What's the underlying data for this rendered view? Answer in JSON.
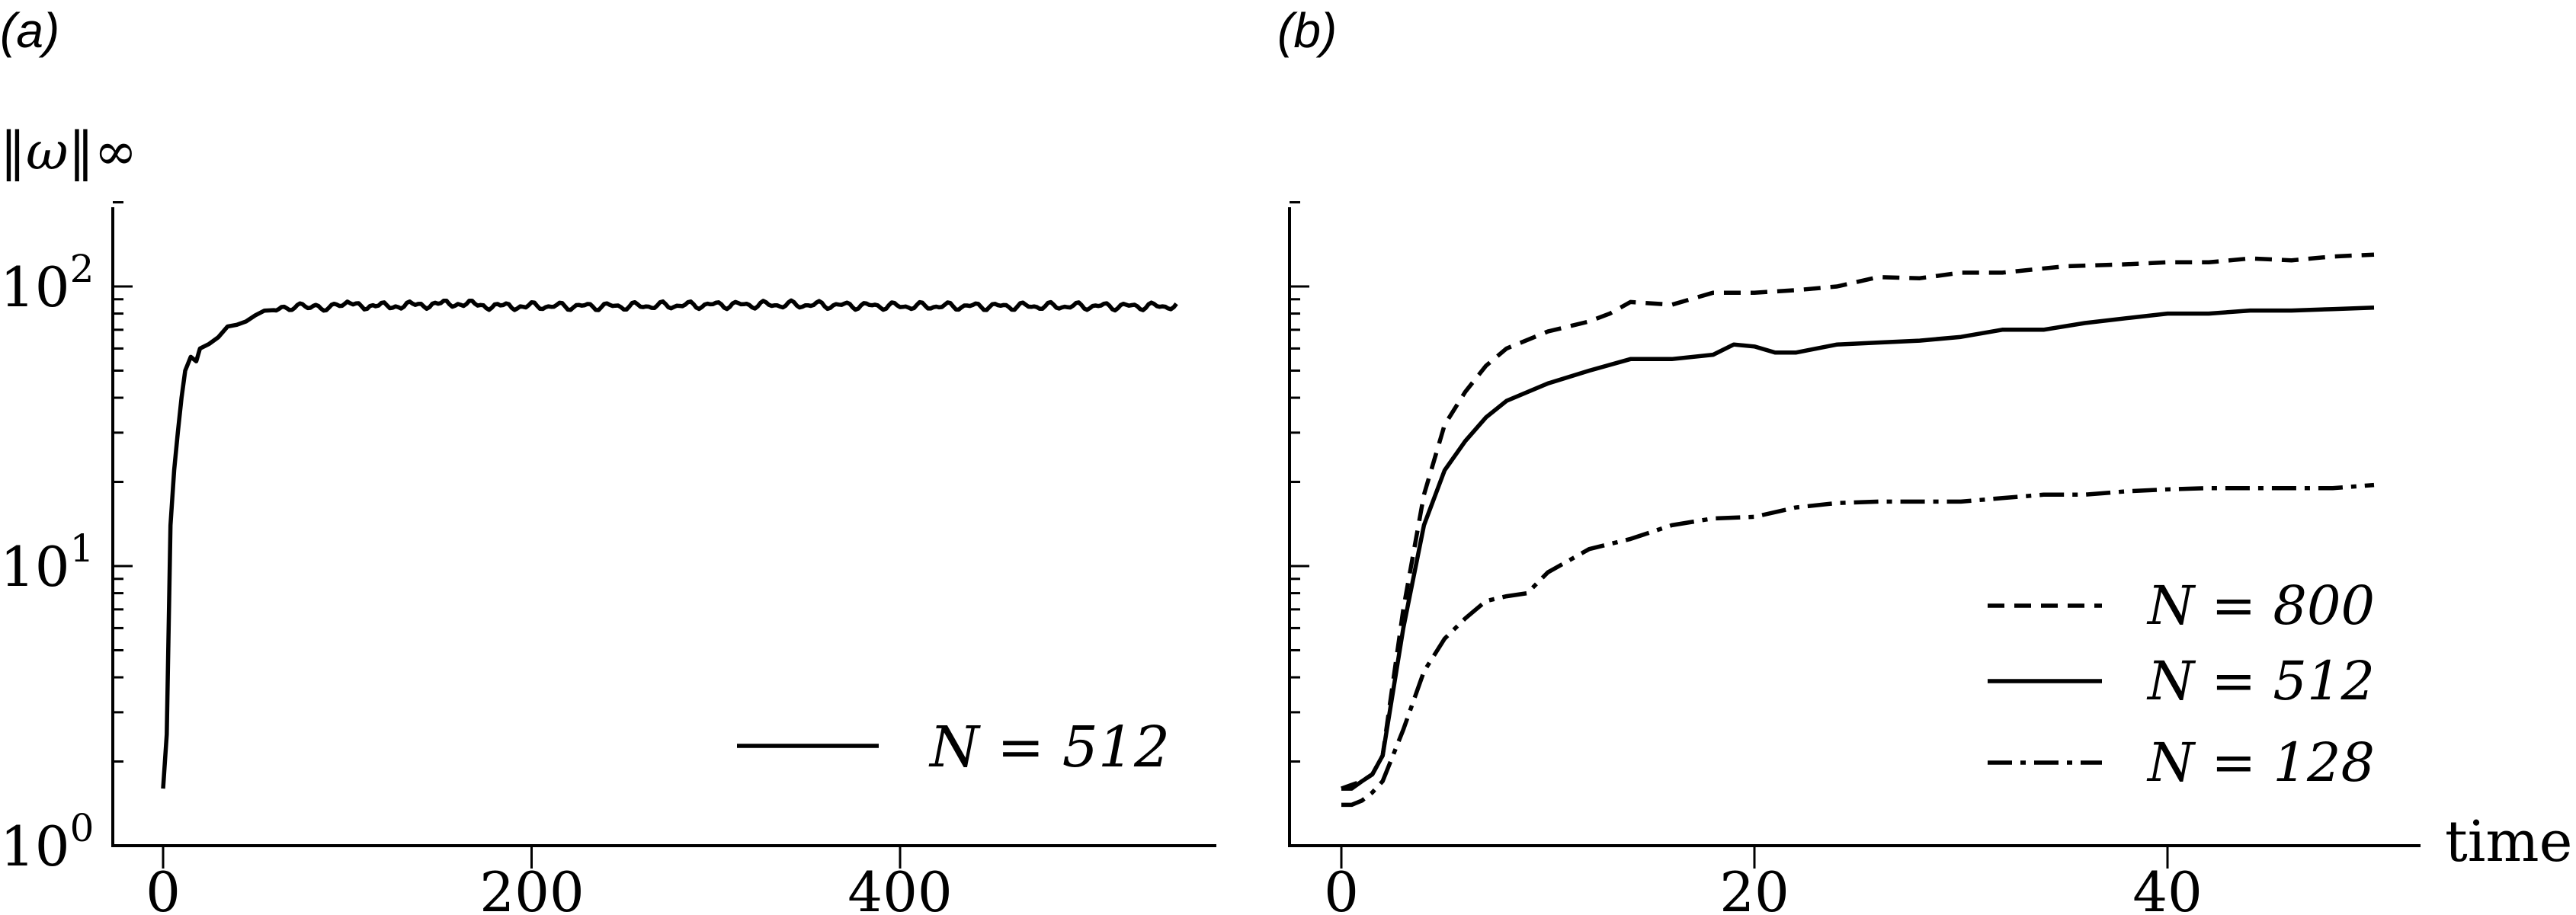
{
  "panel_a": {
    "label": "(a)",
    "ylabel": "‖ω‖∞",
    "ytick_base": "10",
    "yticks": [
      {
        "value": 1,
        "exp": "0"
      },
      {
        "value": 10,
        "exp": "1"
      },
      {
        "value": 100,
        "exp": "2"
      }
    ],
    "xticks": [
      "0",
      "200",
      "400"
    ],
    "legend": [
      {
        "label": "N = 512",
        "style": "solid"
      }
    ]
  },
  "panel_b": {
    "label": "(b)",
    "xlabel": "time",
    "xticks": [
      "0",
      "20",
      "40"
    ],
    "legend": [
      {
        "label": "N = 800",
        "style": "dashed"
      },
      {
        "label": "N = 512",
        "style": "solid"
      },
      {
        "label": "N = 128",
        "style": "dashdot"
      }
    ]
  },
  "chart_data": [
    {
      "type": "line",
      "yscale": "log",
      "ylim": [
        1,
        200
      ],
      "xlim": [
        -5,
        560
      ],
      "xticks": [
        0,
        200,
        400
      ],
      "grid": false,
      "legend_position": "bottom-right",
      "series": [
        {
          "name": "N = 512",
          "style": "solid",
          "x": [
            0,
            2,
            4,
            6,
            8,
            10,
            12,
            15,
            18,
            20,
            25,
            30,
            35,
            40,
            45,
            50,
            55,
            60,
            70,
            80,
            90,
            100,
            120,
            140,
            160,
            180,
            200,
            250,
            300,
            350,
            400,
            450,
            500,
            550
          ],
          "y": [
            1.6,
            2.5,
            14,
            22,
            30,
            40,
            50,
            56,
            54,
            60,
            62,
            65,
            70,
            72,
            76,
            80,
            82,
            83,
            85,
            84,
            85,
            86,
            85,
            86,
            87,
            85,
            85,
            85,
            86,
            86,
            85,
            85,
            85,
            85
          ]
        }
      ]
    },
    {
      "type": "line",
      "yscale": "log",
      "ylim": [
        1,
        200
      ],
      "xlim": [
        -1.5,
        52
      ],
      "xticks": [
        0,
        20,
        40
      ],
      "xlabel": "time",
      "grid": false,
      "legend_position": "bottom-right",
      "series": [
        {
          "name": "N = 800",
          "style": "dashed",
          "x": [
            0,
            0.5,
            1,
            1.5,
            2,
            3,
            4,
            5,
            6,
            7,
            8,
            10,
            12,
            13,
            14,
            16,
            18,
            20,
            22,
            24,
            26,
            28,
            30,
            32,
            35,
            38,
            40,
            42,
            44,
            46,
            48,
            50
          ],
          "y": [
            1.6,
            1.65,
            1.7,
            1.8,
            2.1,
            7,
            18,
            32,
            42,
            52,
            60,
            69,
            75,
            80,
            88,
            86,
            95,
            95,
            97,
            100,
            108,
            107,
            112,
            112,
            118,
            120,
            122,
            122,
            126,
            124,
            128,
            130
          ]
        },
        {
          "name": "N = 512",
          "style": "solid",
          "x": [
            0,
            0.5,
            1,
            1.5,
            2,
            3,
            4,
            5,
            6,
            7,
            8,
            10,
            12,
            14,
            16,
            18,
            19,
            20,
            21,
            22,
            24,
            26,
            28,
            30,
            32,
            34,
            36,
            38,
            40,
            42,
            44,
            46,
            48,
            50
          ],
          "y": [
            1.6,
            1.6,
            1.7,
            1.8,
            2.1,
            6,
            14,
            22,
            28,
            34,
            39,
            45,
            50,
            55,
            55,
            57,
            62,
            61,
            58,
            58,
            62,
            63,
            64,
            66,
            70,
            70,
            74,
            77,
            80,
            80,
            82,
            82,
            83,
            84
          ]
        },
        {
          "name": "N = 128",
          "style": "dashdot",
          "x": [
            0,
            0.5,
            1,
            1.5,
            2,
            3,
            4,
            5,
            6,
            7,
            8,
            9,
            10,
            12,
            14,
            16,
            18,
            20,
            22,
            24,
            26,
            28,
            30,
            32,
            34,
            36,
            38,
            40,
            42,
            44,
            46,
            48,
            50
          ],
          "y": [
            1.4,
            1.4,
            1.45,
            1.55,
            1.7,
            2.6,
            4.2,
            5.5,
            6.5,
            7.5,
            7.8,
            8,
            9.5,
            11.5,
            12.5,
            14,
            14.8,
            15,
            16.2,
            16.8,
            17,
            17,
            17,
            17.5,
            18,
            18,
            18.5,
            18.8,
            19,
            19,
            19,
            19,
            19.5
          ]
        }
      ]
    }
  ]
}
